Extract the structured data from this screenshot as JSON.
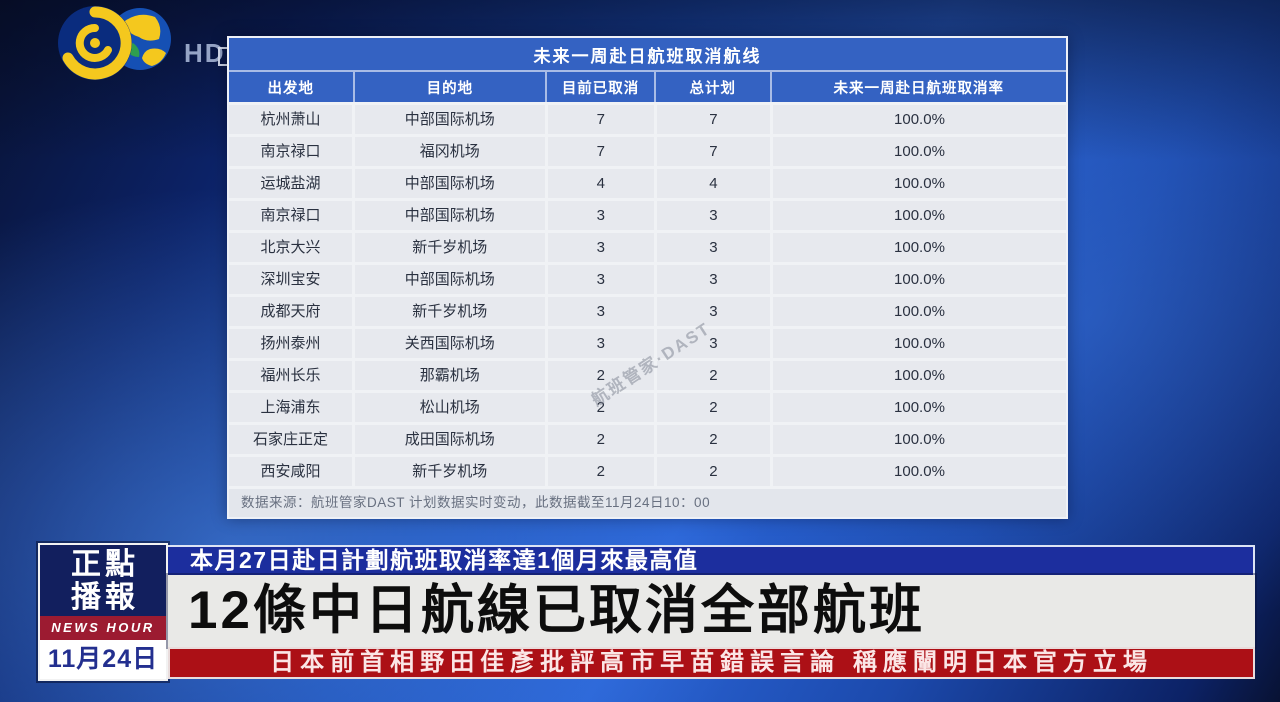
{
  "channel": {
    "logo": "phoenix-tv-logo",
    "hd_label": "HD"
  },
  "table": {
    "title": "未来一周赴日航班取消航线",
    "columns": [
      "出发地",
      "目的地",
      "目前已取消",
      "总计划",
      "未来一周赴日航班取消率"
    ],
    "rows": [
      {
        "departure": "杭州萧山",
        "destination": "中部国际机场",
        "cancelled": "7",
        "planned": "7",
        "rate": "100.0%"
      },
      {
        "departure": "南京禄口",
        "destination": "福冈机场",
        "cancelled": "7",
        "planned": "7",
        "rate": "100.0%"
      },
      {
        "departure": "运城盐湖",
        "destination": "中部国际机场",
        "cancelled": "4",
        "planned": "4",
        "rate": "100.0%"
      },
      {
        "departure": "南京禄口",
        "destination": "中部国际机场",
        "cancelled": "3",
        "planned": "3",
        "rate": "100.0%"
      },
      {
        "departure": "北京大兴",
        "destination": "新千岁机场",
        "cancelled": "3",
        "planned": "3",
        "rate": "100.0%"
      },
      {
        "departure": "深圳宝安",
        "destination": "中部国际机场",
        "cancelled": "3",
        "planned": "3",
        "rate": "100.0%"
      },
      {
        "departure": "成都天府",
        "destination": "新千岁机场",
        "cancelled": "3",
        "planned": "3",
        "rate": "100.0%"
      },
      {
        "departure": "扬州泰州",
        "destination": "关西国际机场",
        "cancelled": "3",
        "planned": "3",
        "rate": "100.0%"
      },
      {
        "departure": "福州长乐",
        "destination": "那霸机场",
        "cancelled": "2",
        "planned": "2",
        "rate": "100.0%"
      },
      {
        "departure": "上海浦东",
        "destination": "松山机场",
        "cancelled": "2",
        "planned": "2",
        "rate": "100.0%"
      },
      {
        "departure": "石家庄正定",
        "destination": "成田国际机场",
        "cancelled": "2",
        "planned": "2",
        "rate": "100.0%"
      },
      {
        "departure": "西安咸阳",
        "destination": "新千岁机场",
        "cancelled": "2",
        "planned": "2",
        "rate": "100.0%"
      }
    ],
    "footnote": "数据来源：航班管家DAST  计划数据实时变动，此数据截至11月24日10：00",
    "watermark": "航班管家·DAST"
  },
  "banner": {
    "program_name_line1": "正點",
    "program_name_line2": "播報",
    "program_subtitle": "NEWS HOUR",
    "date": "11月24日",
    "subheadline": "本月27日赴日計劃航班取消率達1個月來最高值",
    "headline": "12條中日航線已取消全部航班",
    "ticker": "日本前首相野田佳彥批評高市早苗錯誤言論  稱應闡明日本官方立場"
  },
  "colors": {
    "table_header_blue": "#3462c2",
    "row_gray": "#e7e9ee",
    "banner_navy": "#121f5e",
    "subheadline_blue": "#1c2e9e",
    "headline_gray": "#e9e9e7",
    "ticker_red": "#ac1016",
    "news_hour_red": "#9c1b31",
    "date_text_navy": "#232f8f",
    "background_blue": "#2a64d6"
  },
  "chart_data": {
    "type": "table",
    "title": "未来一周赴日航班取消航线",
    "columns": [
      "出发地",
      "目的地",
      "目前已取消",
      "总计划",
      "未来一周赴日航班取消率"
    ],
    "rows": [
      [
        "杭州萧山",
        "中部国际机场",
        7,
        7,
        "100.0%"
      ],
      [
        "南京禄口",
        "福冈机场",
        7,
        7,
        "100.0%"
      ],
      [
        "运城盐湖",
        "中部国际机场",
        4,
        4,
        "100.0%"
      ],
      [
        "南京禄口",
        "中部国际机场",
        3,
        3,
        "100.0%"
      ],
      [
        "北京大兴",
        "新千岁机场",
        3,
        3,
        "100.0%"
      ],
      [
        "深圳宝安",
        "中部国际机场",
        3,
        3,
        "100.0%"
      ],
      [
        "成都天府",
        "新千岁机场",
        3,
        3,
        "100.0%"
      ],
      [
        "扬州泰州",
        "关西国际机场",
        3,
        3,
        "100.0%"
      ],
      [
        "福州长乐",
        "那霸机场",
        2,
        2,
        "100.0%"
      ],
      [
        "上海浦东",
        "松山机场",
        2,
        2,
        "100.0%"
      ],
      [
        "石家庄正定",
        "成田国际机场",
        2,
        2,
        "100.0%"
      ],
      [
        "西安咸阳",
        "新千岁机场",
        2,
        2,
        "100.0%"
      ]
    ],
    "note": "数据来源：航班管家DAST  计划数据实时变动，此数据截至11月24日10：00"
  }
}
